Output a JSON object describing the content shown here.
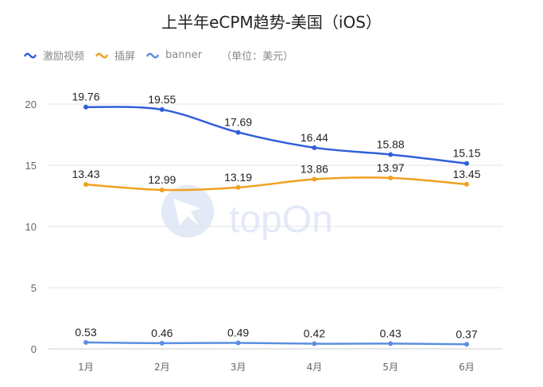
{
  "chart_data": {
    "type": "line",
    "title": "上半年eCPM趋势-美国（iOS）",
    "unit_note": "（单位：美元）",
    "categories": [
      "1月",
      "2月",
      "3月",
      "4月",
      "5月",
      "6月"
    ],
    "ylim": [
      0,
      20
    ],
    "yticks": [
      0,
      5,
      10,
      15,
      20
    ],
    "grid": true,
    "legend_position": "top-left",
    "watermark": "topOn",
    "series": [
      {
        "name": "激励视频",
        "color": "#2f5fd8",
        "values": [
          19.76,
          19.55,
          17.69,
          16.44,
          15.88,
          15.15
        ]
      },
      {
        "name": "插屏",
        "color": "#f0a020",
        "values": [
          13.43,
          12.99,
          13.19,
          13.86,
          13.97,
          13.45
        ]
      },
      {
        "name": "banner",
        "color": "#5b8fe0",
        "values": [
          0.53,
          0.46,
          0.49,
          0.42,
          0.43,
          0.37
        ]
      }
    ]
  }
}
